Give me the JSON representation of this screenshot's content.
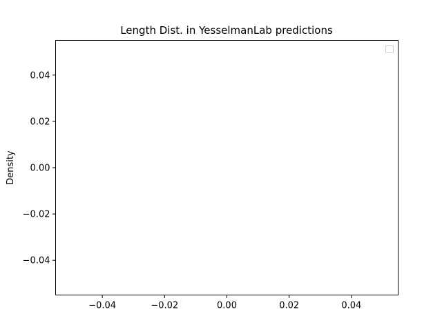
{
  "chart_data": {
    "type": "line",
    "title": "Length Dist. in YesselmanLab predictions",
    "xlabel": "",
    "ylabel": "Density",
    "series": [],
    "xlim": [
      -0.055,
      0.055
    ],
    "ylim": [
      -0.055,
      0.055
    ],
    "xticks": [
      -0.04,
      -0.02,
      0.0,
      0.02,
      0.04
    ],
    "xtick_labels": [
      "−0.04",
      "−0.02",
      "0.00",
      "0.02",
      "0.04"
    ],
    "yticks": [
      0.04,
      0.02,
      0.0,
      -0.02,
      -0.04
    ],
    "ytick_labels": [
      "0.04",
      "0.02",
      "0.00",
      "−0.02",
      "−0.04"
    ],
    "grid": false,
    "legend": {
      "position": "top-right",
      "entries": []
    }
  }
}
